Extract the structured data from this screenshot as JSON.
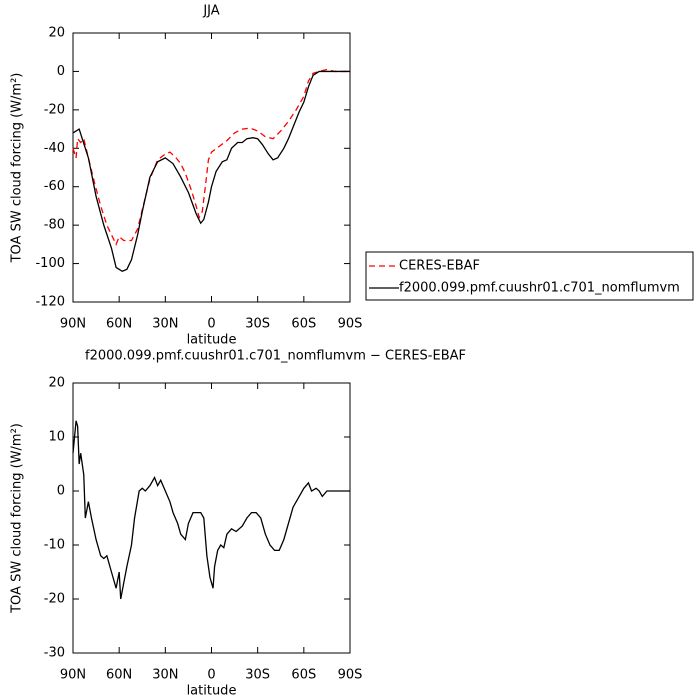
{
  "chart_data": [
    {
      "type": "line",
      "title": "JJA",
      "xlabel": "latitude",
      "ylabel": "TOA SW cloud forcing (W/m²)",
      "xlim": [
        90,
        -90
      ],
      "ylim": [
        -120,
        20
      ],
      "xticks": [
        {
          "value": 90,
          "label": "90N"
        },
        {
          "value": 60,
          "label": "60N"
        },
        {
          "value": 30,
          "label": "30N"
        },
        0,
        {
          "value": -30,
          "label": "30S"
        },
        {
          "value": -60,
          "label": "60S"
        },
        {
          "value": -90,
          "label": "90S"
        }
      ],
      "yticks": [
        -120,
        -100,
        -80,
        -60,
        -40,
        -20,
        0,
        20
      ],
      "legend": "outside-right",
      "series": [
        {
          "name": "CERES-EBAF",
          "color": "#ff0000",
          "line_style": "dashed",
          "x": [
            90,
            88,
            87,
            85,
            83,
            80,
            76,
            72,
            68,
            65,
            62,
            60,
            57,
            52,
            48,
            45,
            40,
            35,
            30,
            27,
            23,
            20,
            17,
            13,
            10,
            8,
            6,
            4,
            2,
            0,
            -5,
            -10,
            -15,
            -20,
            -25,
            -30,
            -35,
            -40,
            -45,
            -50,
            -55,
            -60,
            -63,
            -66,
            -70,
            -75,
            -80,
            -90
          ],
          "values": [
            -40,
            -45,
            -35,
            -37,
            -35,
            -45,
            -58,
            -70,
            -80,
            -85,
            -90,
            -86,
            -88,
            -88,
            -82,
            -72,
            -56,
            -46,
            -43,
            -42,
            -45,
            -48,
            -53,
            -62,
            -70,
            -76,
            -73,
            -60,
            -46,
            -42,
            -39,
            -36,
            -32,
            -30,
            -29.5,
            -31,
            -34,
            -35,
            -31,
            -26,
            -20,
            -13,
            -5,
            -1,
            0,
            1,
            0,
            0
          ]
        },
        {
          "name": "f2000.099.pmf.cuushr01.c701_nomflumvm",
          "color": "#000000",
          "line_style": "solid",
          "x": [
            90,
            86,
            80,
            75,
            70,
            65,
            62,
            58,
            55,
            52,
            48,
            45,
            40,
            35,
            30,
            25,
            20,
            15,
            10,
            7,
            5,
            2,
            0,
            -3,
            -7,
            -10,
            -13,
            -17,
            -20,
            -23,
            -27,
            -30,
            -33,
            -37,
            -40,
            -43,
            -47,
            -50,
            -53,
            -57,
            -60,
            -63,
            -66,
            -70,
            -75,
            -80,
            -85,
            -90
          ],
          "values": [
            -32,
            -30,
            -45,
            -65,
            -80,
            -92,
            -102,
            -104,
            -103,
            -98,
            -85,
            -73,
            -55,
            -47,
            -45,
            -48,
            -55,
            -63,
            -74,
            -79,
            -77,
            -68,
            -60,
            -52,
            -47,
            -46,
            -40,
            -37,
            -37,
            -35,
            -34.5,
            -35,
            -38,
            -43,
            -46,
            -45,
            -40,
            -35,
            -29,
            -21,
            -16,
            -8,
            -2,
            0,
            0,
            0,
            0,
            0
          ]
        }
      ]
    },
    {
      "type": "line",
      "title": "f2000.099.pmf.cuushr01.c701_nomflumvm − CERES-EBAF",
      "xlabel": "latitude",
      "ylabel": "TOA SW cloud forcing (W/m²)",
      "xlim": [
        90,
        -90
      ],
      "ylim": [
        -30,
        20
      ],
      "xticks": [
        {
          "value": 90,
          "label": "90N"
        },
        {
          "value": 60,
          "label": "60N"
        },
        {
          "value": 30,
          "label": "30N"
        },
        0,
        {
          "value": -30,
          "label": "30S"
        },
        {
          "value": -60,
          "label": "60S"
        },
        {
          "value": -90,
          "label": "90S"
        }
      ],
      "yticks": [
        -30,
        -20,
        -10,
        0,
        10,
        20
      ],
      "series": [
        {
          "color": "#000000",
          "line_style": "solid",
          "x": [
            90,
            88,
            87,
            86,
            85,
            83,
            82,
            80,
            78,
            75,
            72,
            70,
            68,
            65,
            62,
            60,
            59,
            57,
            55,
            52,
            50,
            47,
            45,
            43,
            40,
            37,
            35,
            33,
            30,
            27,
            25,
            22,
            20,
            17,
            15,
            12,
            10,
            7,
            5,
            3,
            1,
            0,
            -1,
            -2,
            -4,
            -6,
            -8,
            -10,
            -13,
            -16,
            -20,
            -23,
            -26,
            -29,
            -32,
            -35,
            -38,
            -41,
            -44,
            -47,
            -50,
            -53,
            -57,
            -60,
            -63,
            -65,
            -68,
            -70,
            -72,
            -75,
            -80,
            -85,
            -90
          ],
          "values": [
            7,
            13,
            12,
            5,
            7,
            3,
            -5,
            -2,
            -5,
            -9,
            -12,
            -12.5,
            -12,
            -15,
            -18,
            -15,
            -20,
            -17,
            -14,
            -10,
            -5,
            0,
            0.5,
            0,
            1,
            2.5,
            1,
            2,
            0,
            -2,
            -4,
            -6,
            -8,
            -9,
            -6,
            -4,
            -4,
            -4,
            -5,
            -12,
            -16,
            -17,
            -18,
            -14,
            -11,
            -10,
            -10.5,
            -8,
            -7,
            -7.5,
            -6.5,
            -5,
            -4,
            -4,
            -5,
            -8,
            -10,
            -11,
            -11,
            -9,
            -6,
            -3,
            -1,
            0.5,
            1.5,
            0,
            0.5,
            0,
            -1,
            0,
            0,
            0,
            0
          ]
        }
      ]
    }
  ]
}
